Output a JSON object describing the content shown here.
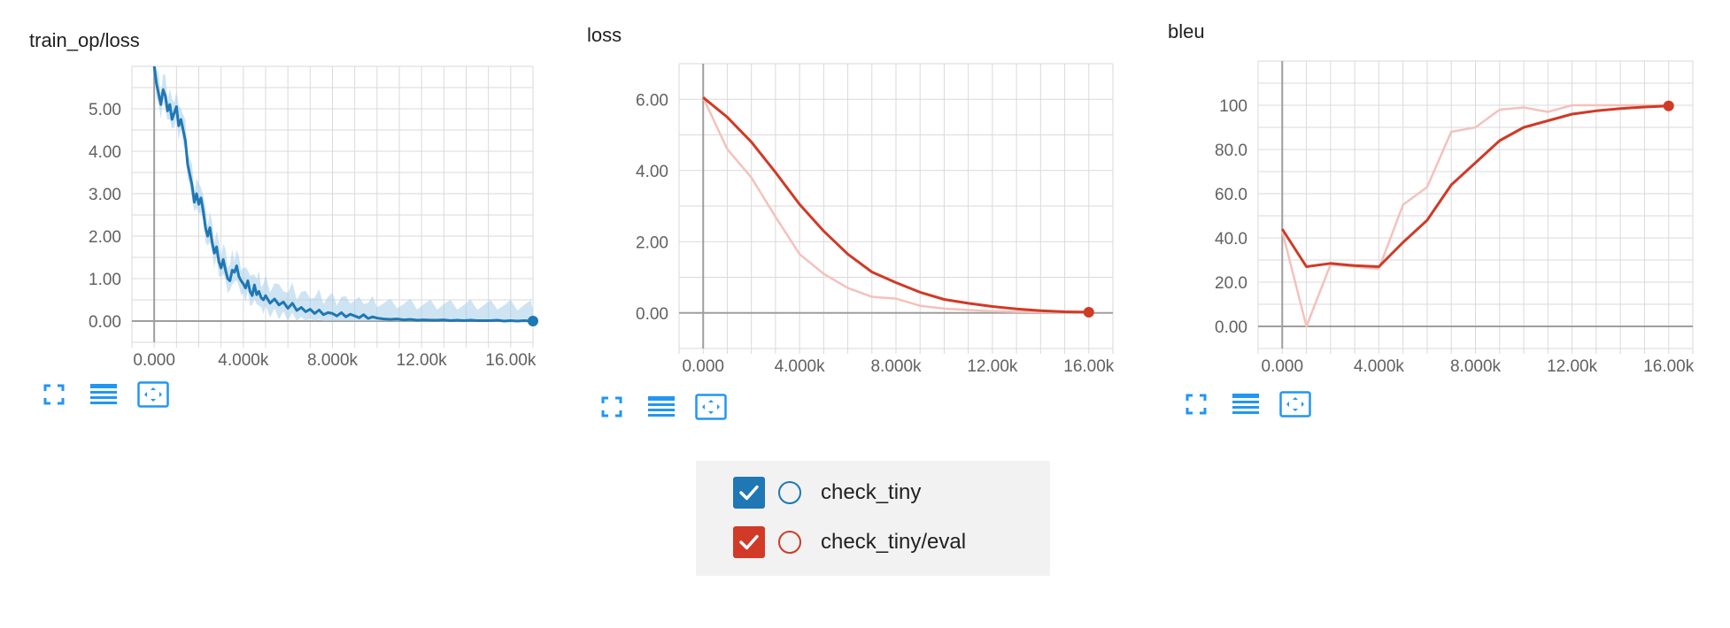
{
  "colors": {
    "blue": "#1f77b4",
    "blue_light": "#a6cde8",
    "red": "#d03a26",
    "red_light": "#f3c2bb",
    "icon": "#2196f3",
    "grid": "#dadada",
    "axis": "#9e9e9e"
  },
  "toolbar": {
    "icons": [
      "fullscreen-icon",
      "list-icon",
      "fit-domain-icon"
    ]
  },
  "legend": {
    "runs": [
      {
        "label": "check_tiny",
        "color": "#1f77b4",
        "checked": true
      },
      {
        "label": "check_tiny/eval",
        "color": "#d03a26",
        "checked": true
      }
    ]
  },
  "chart_data": [
    {
      "type": "line",
      "title": "train_op/loss",
      "xlim": [
        -1000,
        17000
      ],
      "ylim": [
        -0.5,
        6.0
      ],
      "xticks": [
        0,
        4000,
        8000,
        12000,
        16000
      ],
      "xtick_labels": [
        "0.000",
        "4.000k",
        "8.000k",
        "12.00k",
        "16.00k"
      ],
      "yticks": [
        0,
        1,
        2,
        3,
        4,
        5
      ],
      "ytick_labels": [
        "0.00",
        "1.00",
        "2.00",
        "3.00",
        "4.00",
        "5.00"
      ],
      "grid": true,
      "series": [
        {
          "run": "check_tiny",
          "color": "#1f77b4",
          "raw_band": true,
          "x": [
            0,
            100,
            200,
            300,
            400,
            500,
            600,
            700,
            800,
            900,
            1000,
            1100,
            1200,
            1300,
            1400,
            1500,
            1600,
            1700,
            1800,
            1900,
            2000,
            2100,
            2200,
            2300,
            2400,
            2500,
            2600,
            2700,
            2800,
            2900,
            3000,
            3100,
            3200,
            3300,
            3400,
            3500,
            3600,
            3700,
            3800,
            3900,
            4000,
            4100,
            4200,
            4300,
            4400,
            4500,
            4600,
            4700,
            4800,
            4900,
            5000,
            5200,
            5400,
            5600,
            5800,
            6000,
            6200,
            6400,
            6600,
            6800,
            7000,
            7200,
            7400,
            7600,
            7800,
            8000,
            8200,
            8400,
            8600,
            8800,
            9000,
            9200,
            9400,
            9600,
            9800,
            10000,
            10300,
            10600,
            10900,
            11200,
            11500,
            11800,
            12100,
            12400,
            12700,
            13000,
            13300,
            13600,
            13900,
            14200,
            14500,
            14800,
            15100,
            15400,
            15700,
            16000,
            16300,
            16600,
            16900,
            17000
          ],
          "y": [
            6.2,
            5.6,
            5.35,
            5.1,
            5.45,
            5.3,
            4.95,
            5.1,
            4.75,
            4.9,
            5.05,
            4.6,
            4.75,
            4.5,
            4.25,
            3.7,
            3.45,
            3.2,
            2.8,
            3.0,
            2.75,
            2.9,
            2.6,
            2.2,
            2.0,
            2.2,
            1.85,
            1.6,
            1.75,
            1.4,
            1.25,
            1.45,
            1.2,
            1.0,
            0.95,
            1.2,
            1.15,
            1.3,
            1.05,
            0.95,
            0.88,
            0.78,
            0.95,
            0.7,
            0.6,
            0.85,
            0.62,
            0.7,
            0.55,
            0.5,
            0.6,
            0.42,
            0.52,
            0.38,
            0.45,
            0.3,
            0.42,
            0.25,
            0.32,
            0.22,
            0.28,
            0.18,
            0.26,
            0.15,
            0.2,
            0.18,
            0.12,
            0.2,
            0.1,
            0.16,
            0.12,
            0.08,
            0.15,
            0.06,
            0.1,
            0.07,
            0.05,
            0.04,
            0.05,
            0.03,
            0.04,
            0.02,
            0.03,
            0.02,
            0.02,
            0.03,
            0.01,
            0.02,
            0.01,
            0.02,
            0.01,
            0.01,
            0.01,
            0.02,
            0.0,
            0.01,
            0.0,
            0.01,
            0.0,
            0.0
          ]
        }
      ],
      "endpoint": {
        "x": 17000,
        "y": 0.0,
        "color": "#1f77b4"
      }
    },
    {
      "type": "line",
      "title": "loss",
      "xlim": [
        -1000,
        17000
      ],
      "ylim": [
        -1.0,
        7.0
      ],
      "xticks": [
        0,
        4000,
        8000,
        12000,
        16000
      ],
      "xtick_labels": [
        "0.000",
        "4.000k",
        "8.000k",
        "12.00k",
        "16.00k"
      ],
      "yticks": [
        0,
        2,
        4,
        6
      ],
      "ytick_labels": [
        "0.00",
        "2.00",
        "4.00",
        "6.00"
      ],
      "grid": true,
      "series": [
        {
          "run": "check_tiny/eval",
          "label": "raw",
          "color": "#f3c2bb",
          "x": [
            0,
            1000,
            2000,
            3000,
            4000,
            5000,
            6000,
            7000,
            8000,
            9000,
            10000,
            11000,
            12000,
            13000,
            14000,
            15000,
            16000
          ],
          "y": [
            6.05,
            4.6,
            3.8,
            2.7,
            1.65,
            1.1,
            0.7,
            0.45,
            0.4,
            0.2,
            0.12,
            0.08,
            0.05,
            0.03,
            0.02,
            0.01,
            0.0
          ]
        },
        {
          "run": "check_tiny/eval",
          "label": "smoothed",
          "color": "#d03a26",
          "x": [
            0,
            1000,
            2000,
            3000,
            4000,
            5000,
            6000,
            7000,
            8000,
            9000,
            10000,
            11000,
            12000,
            13000,
            14000,
            15000,
            16000
          ],
          "y": [
            6.05,
            5.5,
            4.8,
            3.95,
            3.05,
            2.3,
            1.65,
            1.15,
            0.85,
            0.58,
            0.38,
            0.27,
            0.18,
            0.11,
            0.06,
            0.03,
            0.02
          ]
        }
      ],
      "endpoint": {
        "x": 16000,
        "y": 0.02,
        "color": "#d03a26"
      }
    },
    {
      "type": "line",
      "title": "bleu",
      "xlim": [
        -1000,
        17000
      ],
      "ylim": [
        -10,
        120
      ],
      "xticks": [
        0,
        4000,
        8000,
        12000,
        16000
      ],
      "xtick_labels": [
        "0.000",
        "4.000k",
        "8.000k",
        "12.00k",
        "16.00k"
      ],
      "yticks": [
        0,
        20,
        40,
        60,
        80,
        100
      ],
      "ytick_labels": [
        "0.00",
        "20.0",
        "40.0",
        "60.0",
        "80.0",
        "100"
      ],
      "grid": true,
      "series": [
        {
          "run": "check_tiny/eval",
          "label": "raw",
          "color": "#f3c2bb",
          "x": [
            0,
            1000,
            2000,
            3000,
            4000,
            5000,
            6000,
            7000,
            8000,
            9000,
            10000,
            11000,
            12000,
            13000,
            14000,
            15000,
            16000
          ],
          "y": [
            43,
            0,
            28,
            27,
            26,
            55,
            63,
            88,
            90,
            98,
            99,
            97,
            100,
            100,
            100,
            100,
            100
          ]
        },
        {
          "run": "check_tiny/eval",
          "label": "smoothed",
          "color": "#d03a26",
          "x": [
            0,
            1000,
            2000,
            3000,
            4000,
            5000,
            6000,
            7000,
            8000,
            9000,
            10000,
            11000,
            12000,
            13000,
            14000,
            15000,
            16000
          ],
          "y": [
            44,
            27,
            28.5,
            27.5,
            27,
            38,
            48,
            64,
            74,
            84,
            90,
            93,
            96,
            97.5,
            98.5,
            99.2,
            99.7
          ]
        }
      ],
      "endpoint": {
        "x": 16000,
        "y": 99.7,
        "color": "#d03a26"
      }
    }
  ]
}
